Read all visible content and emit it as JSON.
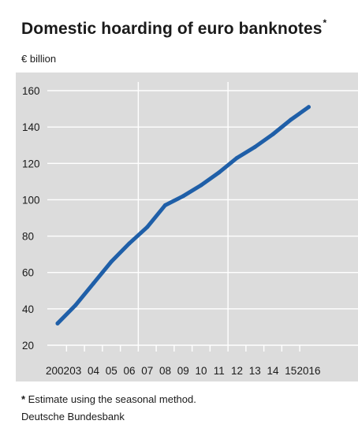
{
  "chart_data": {
    "type": "line",
    "title": "Domestic hoarding of euro banknotes",
    "title_mark": "*",
    "unit_label": "€ billion",
    "x": [
      "2002",
      "03",
      "04",
      "05",
      "06",
      "07",
      "08",
      "09",
      "10",
      "11",
      "12",
      "13",
      "14",
      "15",
      "2016"
    ],
    "series": [
      {
        "values": [
          32,
          42,
          54,
          66,
          76,
          85,
          97,
          102,
          108,
          115,
          123,
          129,
          136,
          144,
          151
        ]
      }
    ],
    "ylim": [
      20,
      160
    ],
    "yticks": [
      20,
      40,
      60,
      80,
      100,
      120,
      140,
      160
    ],
    "line_color": "#1f5fa8",
    "plot_background": "#dcdcdc",
    "grid": true,
    "vertical_gridlines_after": [
      "06",
      "11"
    ]
  },
  "footnote": {
    "mark": "*",
    "text": " Estimate using the seasonal method."
  },
  "source": "Deutsche Bundesbank"
}
